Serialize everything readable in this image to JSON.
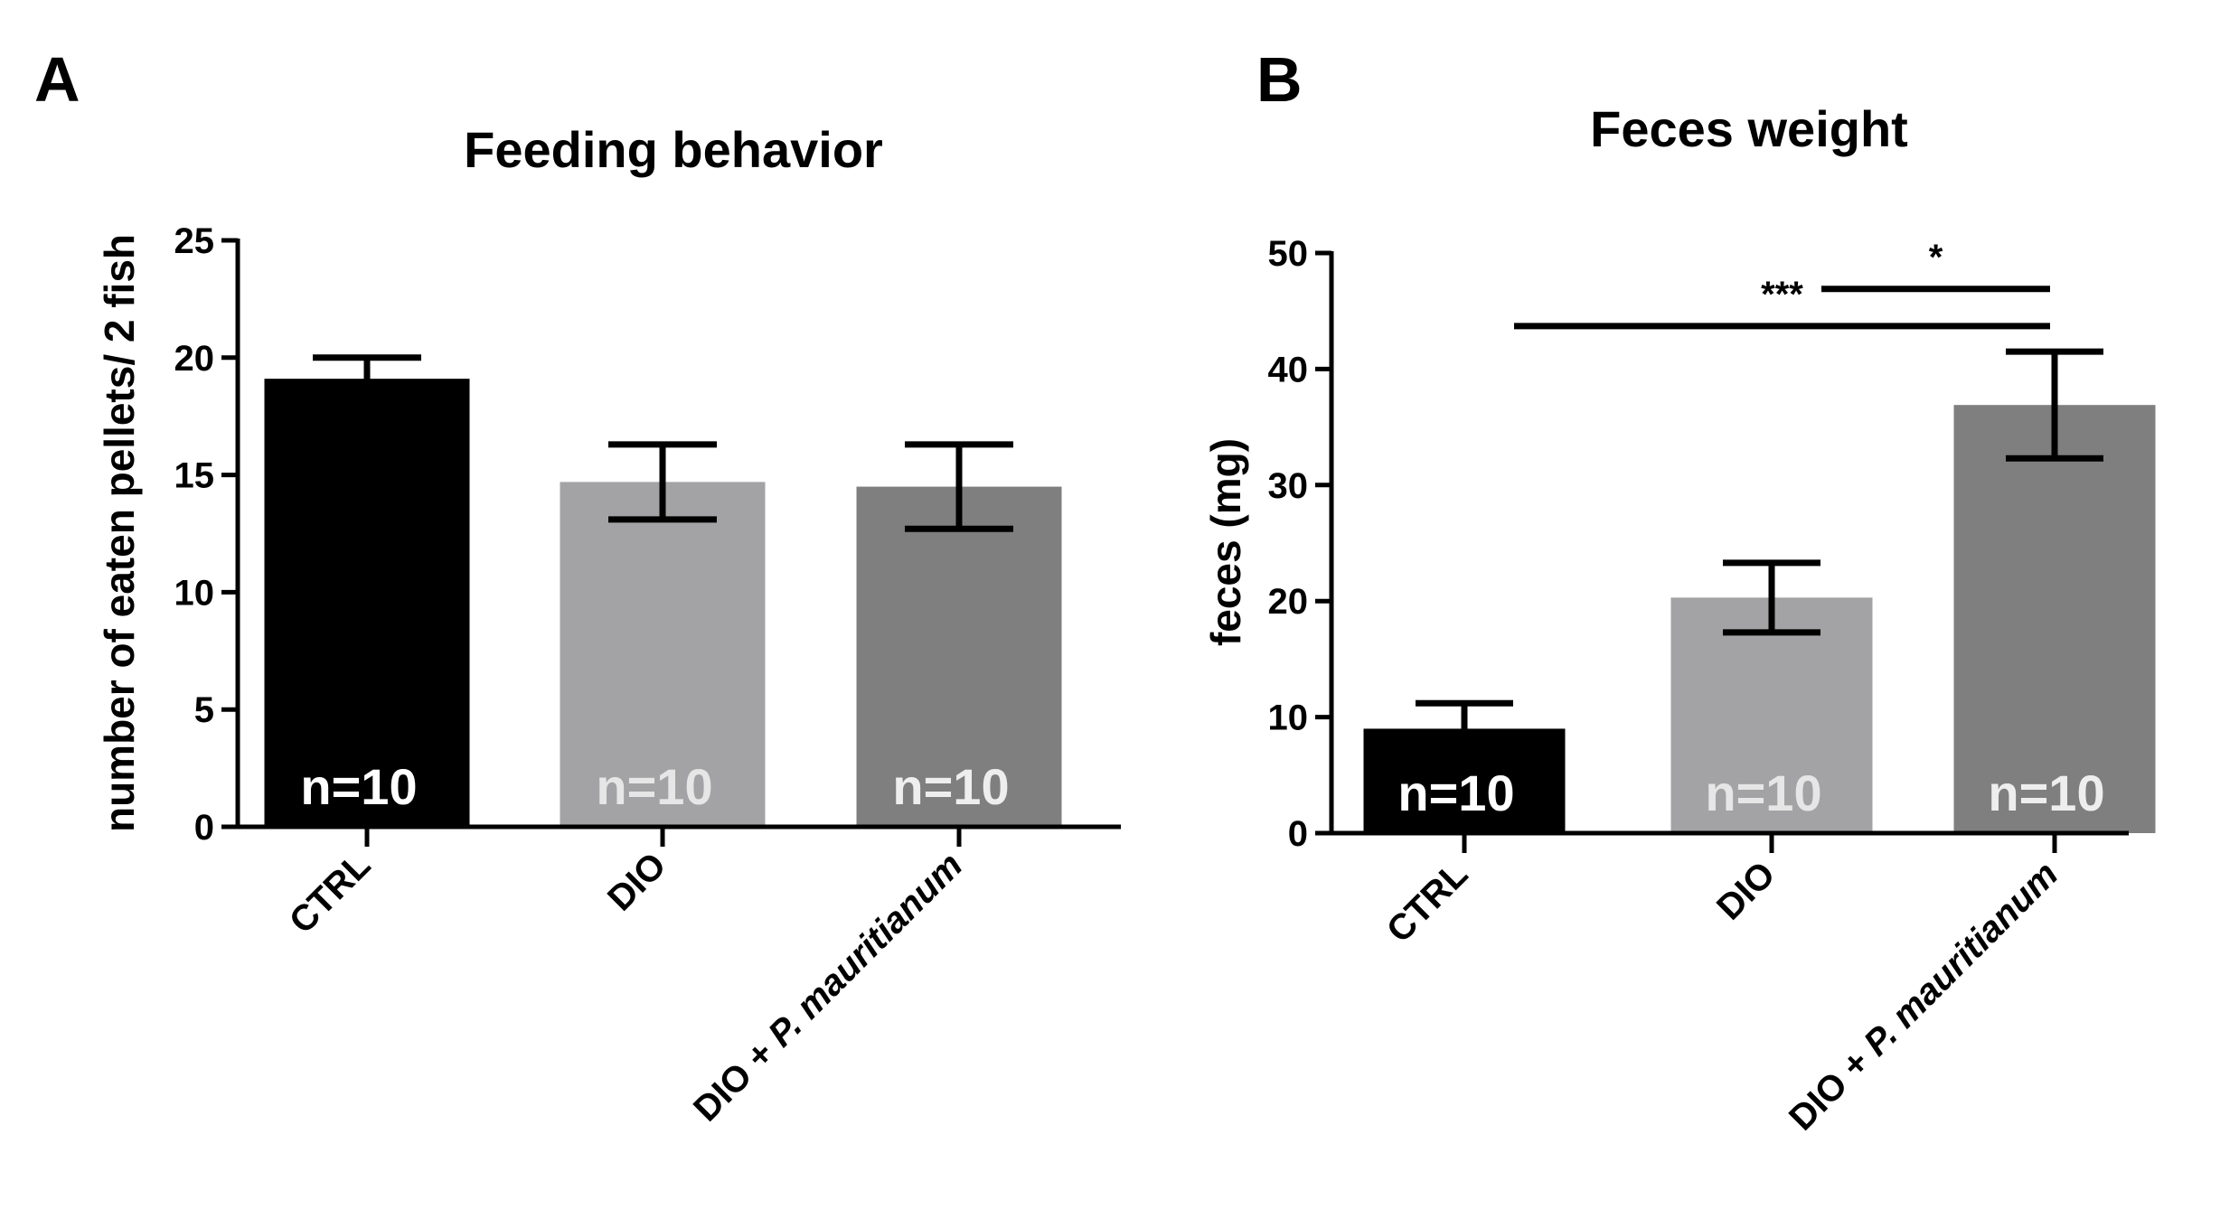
{
  "chart_data": [
    {
      "type": "bar",
      "panel": "A",
      "title": "Feeding behavior",
      "xlabel": "",
      "ylabel": "number of eaten pellets/ 2 fish",
      "ylim": [
        0,
        25
      ],
      "yticks": [
        0,
        5,
        10,
        15,
        20,
        25
      ],
      "categories": [
        {
          "prefix": "CTRL",
          "italic": ""
        },
        {
          "prefix": "DIO",
          "italic": ""
        },
        {
          "prefix": "DIO + ",
          "italic": "P. mauritianum"
        }
      ],
      "values": [
        19.1,
        14.7,
        14.5
      ],
      "errors": [
        0.9,
        1.6,
        1.8
      ],
      "n_labels": [
        "n=10",
        "n=10",
        "n=10"
      ],
      "colors": [
        "#000000",
        "#a3a3a5",
        "#7f7f7f"
      ],
      "n_label_colors": [
        "#ffffff",
        "#e6e6e6",
        "#eeeeee"
      ],
      "significance": []
    },
    {
      "type": "bar",
      "panel": "B",
      "title": "Feces weight",
      "xlabel": "",
      "ylabel": "feces (mg)",
      "ylim": [
        0,
        50
      ],
      "yticks": [
        0,
        10,
        20,
        30,
        40,
        50
      ],
      "categories": [
        {
          "prefix": "CTRL",
          "italic": ""
        },
        {
          "prefix": "DIO",
          "italic": ""
        },
        {
          "prefix": "DIO + ",
          "italic": "P. mauritianum"
        }
      ],
      "values": [
        9.0,
        20.3,
        36.9
      ],
      "errors": [
        2.2,
        3.0,
        4.6
      ],
      "n_labels": [
        "n=10",
        "n=10",
        "n=10"
      ],
      "colors": [
        "#000000",
        "#a3a3a5",
        "#7f7f7f"
      ],
      "n_label_colors": [
        "#ffffff",
        "#e6e6e6",
        "#eeeeee"
      ],
      "significance": [
        {
          "from": 0,
          "to": 2,
          "label": "***",
          "y": 43.7
        },
        {
          "from": 1,
          "to": 2,
          "label": "*",
          "y": 46.9
        }
      ]
    }
  ]
}
